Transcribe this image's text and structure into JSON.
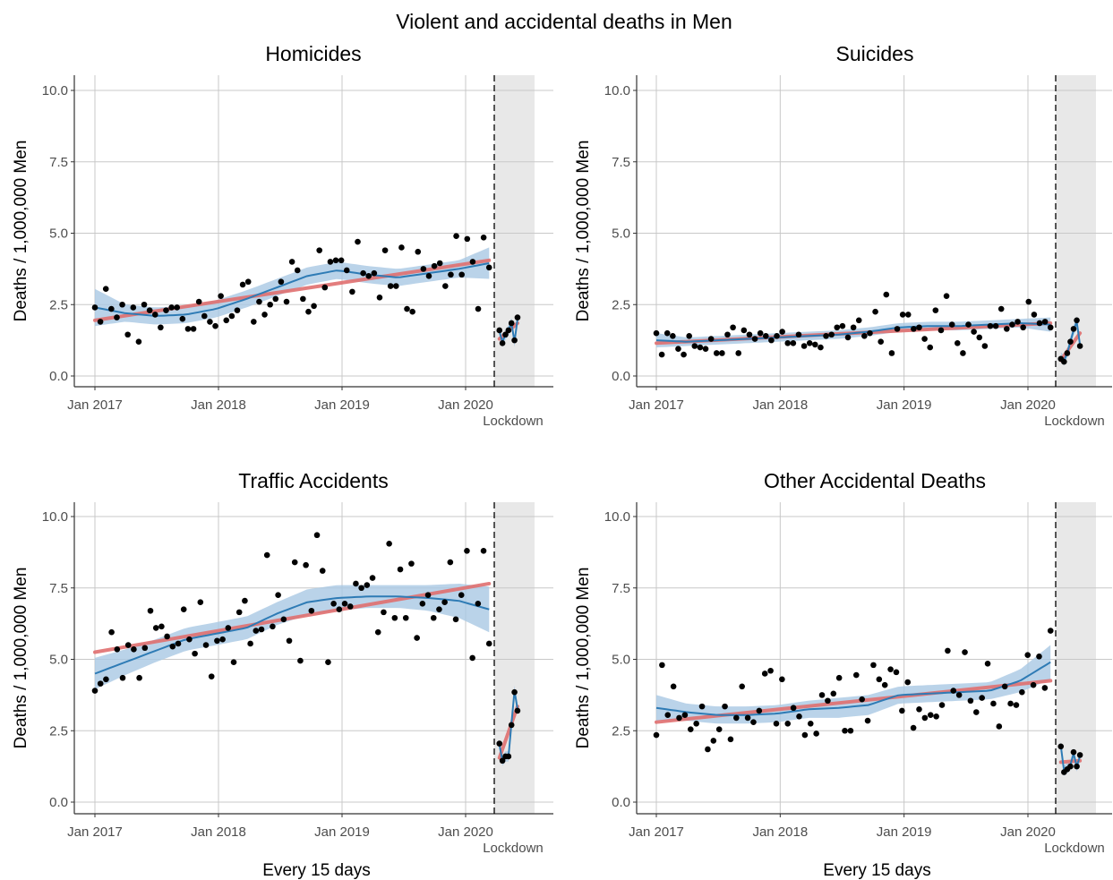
{
  "title": "Violent and accidental deaths in Men",
  "colors": {
    "loess": "#2E7BB5",
    "band": "#A9C8E4",
    "linear": "#E07070",
    "points": "#000000",
    "shade": "#E8E8E8",
    "grid": "#C8C8C8"
  },
  "chart_data": [
    {
      "type": "scatter",
      "title": "Homicides",
      "xlabel": "",
      "ylabel": "Deaths / 1,000,000 Men",
      "x_ticks": [
        "Jan 2017",
        "Jan 2018",
        "Jan 2019",
        "Jan 2020"
      ],
      "y_ticks": [
        "0.0",
        "2.5",
        "5.0",
        "7.5",
        "10.0"
      ],
      "ylim": [
        0,
        10
      ],
      "xlim": [
        "Jan 2017",
        "Jul 2020"
      ],
      "lockdown_label": "Lockdown",
      "lockdown_start": "2020-03",
      "points_pre": [
        2.4,
        1.9,
        3.05,
        2.35,
        2.05,
        2.5,
        1.45,
        2.4,
        1.2,
        2.5,
        2.3,
        2.15,
        1.7,
        2.3,
        2.4,
        2.4,
        2.0,
        1.65,
        1.65,
        2.6,
        2.1,
        1.9,
        1.75,
        2.8,
        1.95,
        2.1,
        2.3,
        3.2,
        3.3,
        1.9,
        2.6,
        2.15,
        2.5,
        2.7,
        3.3,
        2.6,
        4.0,
        3.7,
        2.7,
        2.25,
        2.45,
        4.4,
        3.1,
        4.0,
        4.05,
        4.05,
        3.7,
        2.95,
        4.7,
        3.6,
        3.5,
        3.6,
        2.75,
        4.4,
        3.15,
        3.15,
        4.5,
        2.35,
        2.25,
        4.35,
        3.75,
        3.5,
        3.85,
        3.95,
        3.15,
        3.55,
        4.9,
        3.55,
        4.8,
        4.0,
        2.35,
        4.85,
        3.8
      ],
      "points_post": [
        1.6,
        1.15,
        1.45,
        1.6,
        1.85,
        1.25,
        2.05
      ],
      "loess_pre": [
        2.4,
        2.2,
        2.1,
        2.15,
        2.35,
        2.7,
        3.1,
        3.5,
        3.7,
        3.55,
        3.45,
        3.6,
        3.75,
        3.95
      ],
      "band_pre": [
        0.65,
        0.3,
        0.3,
        0.3,
        0.3,
        0.3,
        0.3,
        0.3,
        0.3,
        0.3,
        0.3,
        0.3,
        0.3,
        0.55
      ],
      "linear_pre": [
        1.95,
        4.05
      ],
      "loess_post": [
        1.55,
        1.2,
        1.45,
        1.6,
        1.85,
        1.2,
        2.0
      ],
      "linear_post": [
        1.3,
        1.85
      ]
    },
    {
      "type": "scatter",
      "title": "Suicides",
      "xlabel": "",
      "ylabel": "Deaths / 1,000,000 Men",
      "x_ticks": [
        "Jan 2017",
        "Jan 2018",
        "Jan 2019",
        "Jan 2020"
      ],
      "y_ticks": [
        "0.0",
        "2.5",
        "5.0",
        "7.5",
        "10.0"
      ],
      "ylim": [
        0,
        10
      ],
      "xlim": [
        "Jan 2017",
        "Jul 2020"
      ],
      "lockdown_label": "Lockdown",
      "lockdown_start": "2020-03",
      "points_pre": [
        1.5,
        0.75,
        1.5,
        1.4,
        0.95,
        0.75,
        1.4,
        1.05,
        1.0,
        0.95,
        1.3,
        0.8,
        0.8,
        1.45,
        1.7,
        0.8,
        1.6,
        1.45,
        1.3,
        1.5,
        1.4,
        1.25,
        1.4,
        1.55,
        1.15,
        1.15,
        1.45,
        1.05,
        1.15,
        1.1,
        1.0,
        1.4,
        1.45,
        1.7,
        1.75,
        1.35,
        1.7,
        1.95,
        1.4,
        1.5,
        2.25,
        1.2,
        2.85,
        0.8,
        1.65,
        2.15,
        2.15,
        1.65,
        1.7,
        1.3,
        1.0,
        2.3,
        1.6,
        2.8,
        1.8,
        1.15,
        0.8,
        1.8,
        1.55,
        1.35,
        1.05,
        1.75,
        1.75,
        2.35,
        1.65,
        1.8,
        1.9,
        1.7,
        2.6,
        2.15,
        1.85,
        1.9,
        1.7
      ],
      "points_post": [
        0.6,
        0.5,
        0.8,
        1.2,
        1.65,
        1.95,
        1.05
      ],
      "loess_pre": [
        1.25,
        1.2,
        1.25,
        1.3,
        1.35,
        1.4,
        1.45,
        1.55,
        1.7,
        1.75,
        1.75,
        1.8,
        1.85,
        1.8
      ],
      "band_pre": [
        0.25,
        0.15,
        0.15,
        0.15,
        0.15,
        0.15,
        0.15,
        0.15,
        0.15,
        0.15,
        0.15,
        0.15,
        0.15,
        0.25
      ],
      "linear_pre": [
        1.15,
        1.85
      ],
      "loess_post": [
        0.65,
        0.55,
        0.8,
        1.2,
        1.6,
        1.9,
        1.1
      ],
      "linear_post": [
        0.55,
        1.5
      ]
    },
    {
      "type": "scatter",
      "title": "Traffic Accidents",
      "xlabel": "Every 15 days",
      "ylabel": "Deaths / 1,000,000 Men",
      "x_ticks": [
        "Jan 2017",
        "Jan 2018",
        "Jan 2019",
        "Jan 2020"
      ],
      "y_ticks": [
        "0.0",
        "2.5",
        "5.0",
        "7.5",
        "10.0"
      ],
      "ylim": [
        0,
        10
      ],
      "xlim": [
        "Jan 2017",
        "Jul 2020"
      ],
      "lockdown_label": "Lockdown",
      "lockdown_start": "2020-03",
      "points_pre": [
        3.9,
        4.15,
        4.3,
        5.95,
        5.35,
        4.35,
        5.5,
        5.35,
        4.35,
        5.4,
        6.7,
        6.1,
        6.15,
        5.8,
        5.45,
        5.55,
        6.75,
        5.7,
        5.2,
        7.0,
        5.5,
        4.4,
        5.65,
        5.7,
        6.1,
        4.9,
        6.65,
        7.05,
        5.55,
        6.0,
        6.05,
        8.65,
        6.15,
        7.25,
        6.4,
        5.65,
        8.4,
        4.95,
        8.3,
        6.7,
        9.35,
        8.1,
        4.9,
        6.95,
        6.75,
        6.95,
        6.85,
        7.65,
        7.5,
        7.6,
        7.85,
        5.95,
        6.65,
        9.05,
        6.45,
        8.15,
        6.45,
        8.35,
        5.75,
        6.95,
        7.25,
        6.45,
        6.75,
        7.0,
        8.4,
        6.4,
        7.25,
        8.8,
        5.05,
        6.95,
        8.8,
        5.55
      ],
      "points_post": [
        2.05,
        1.45,
        1.6,
        1.6,
        2.7,
        3.85,
        3.2
      ],
      "loess_pre": [
        4.5,
        4.9,
        5.3,
        5.7,
        5.9,
        6.1,
        6.6,
        7.0,
        7.15,
        7.2,
        7.2,
        7.15,
        7.05,
        6.75
      ],
      "band_pre": [
        0.55,
        0.45,
        0.4,
        0.4,
        0.4,
        0.4,
        0.4,
        0.45,
        0.45,
        0.4,
        0.4,
        0.45,
        0.6,
        0.8
      ],
      "linear_pre": [
        5.25,
        7.65
      ],
      "loess_post": [
        2.0,
        1.45,
        1.6,
        1.6,
        2.75,
        3.9,
        3.25
      ],
      "linear_post": [
        1.55,
        3.35
      ]
    },
    {
      "type": "scatter",
      "title": "Other Accidental Deaths",
      "xlabel": "Every 15 days",
      "ylabel": "Deaths / 1,000,000 Men",
      "x_ticks": [
        "Jan 2017",
        "Jan 2018",
        "Jan 2019",
        "Jan 2020"
      ],
      "y_ticks": [
        "0.0",
        "2.5",
        "5.0",
        "7.5",
        "10.0"
      ],
      "ylim": [
        0,
        10
      ],
      "xlim": [
        "Jan 2017",
        "Jul 2020"
      ],
      "lockdown_label": "Lockdown",
      "lockdown_start": "2020-03",
      "points_pre": [
        2.35,
        4.8,
        3.05,
        4.05,
        2.95,
        3.05,
        2.55,
        2.75,
        3.35,
        1.85,
        2.15,
        2.55,
        3.35,
        2.2,
        2.95,
        4.05,
        2.95,
        2.8,
        3.2,
        4.5,
        4.6,
        2.75,
        4.3,
        2.75,
        3.3,
        3.0,
        2.35,
        2.75,
        2.4,
        3.75,
        3.55,
        3.8,
        4.35,
        2.5,
        2.5,
        4.45,
        3.6,
        2.85,
        4.8,
        4.3,
        4.1,
        4.65,
        4.55,
        3.2,
        4.2,
        2.6,
        3.25,
        2.95,
        3.05,
        3.0,
        3.4,
        5.3,
        3.9,
        3.75,
        5.25,
        3.55,
        3.15,
        3.65,
        4.85,
        3.45,
        2.65,
        4.05,
        3.45,
        3.4,
        3.85,
        5.15,
        4.1,
        5.1,
        4.0,
        6.0
      ],
      "points_post": [
        1.95,
        1.05,
        1.15,
        1.25,
        1.75,
        1.25,
        1.65
      ],
      "loess_pre": [
        3.3,
        3.15,
        3.05,
        3.05,
        3.1,
        3.25,
        3.3,
        3.4,
        3.75,
        3.8,
        3.85,
        3.9,
        4.25,
        4.9
      ],
      "band_pre": [
        0.45,
        0.3,
        0.3,
        0.3,
        0.3,
        0.3,
        0.35,
        0.35,
        0.3,
        0.3,
        0.3,
        0.3,
        0.4,
        0.6
      ],
      "linear_pre": [
        2.8,
        4.25
      ],
      "loess_post": [
        1.95,
        1.1,
        1.2,
        1.3,
        1.7,
        1.25,
        1.6
      ],
      "linear_post": [
        1.4,
        1.45
      ]
    }
  ]
}
